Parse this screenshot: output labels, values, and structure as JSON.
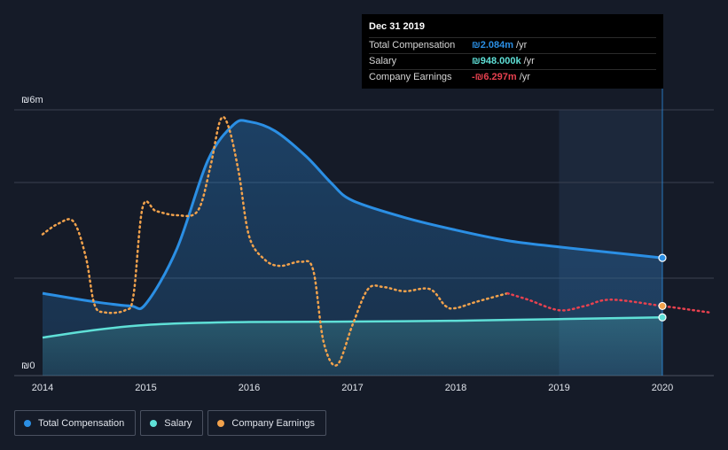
{
  "chart_data": {
    "type": "area",
    "currency_symbol": "₪",
    "x_ticks": [
      "2014",
      "2015",
      "2016",
      "2017",
      "2018",
      "2019",
      "2020"
    ],
    "y_tick_labels": [
      "₪6m",
      "₪0"
    ],
    "ylim": [
      -0.3,
      6
    ],
    "x_range": [
      2014,
      2020.5
    ],
    "forecast_start": 2019.0,
    "series": [
      {
        "name": "Total Compensation",
        "key": "total",
        "color": "#2b8fe4",
        "values": [
          [
            2014.0,
            1.65
          ],
          [
            2014.5,
            1.45
          ],
          [
            2014.85,
            1.35
          ],
          [
            2015.0,
            1.4
          ],
          [
            2015.3,
            2.7
          ],
          [
            2015.6,
            4.8
          ],
          [
            2015.85,
            5.65
          ],
          [
            2016.0,
            5.72
          ],
          [
            2016.25,
            5.5
          ],
          [
            2016.55,
            4.9
          ],
          [
            2016.8,
            4.25
          ],
          [
            2017.0,
            3.85
          ],
          [
            2017.5,
            3.45
          ],
          [
            2018.0,
            3.15
          ],
          [
            2018.5,
            2.9
          ],
          [
            2019.0,
            2.75
          ],
          [
            2019.5,
            2.62
          ],
          [
            2020.0,
            2.49
          ]
        ]
      },
      {
        "name": "Salary",
        "key": "salary",
        "color": "#5fe0d7",
        "values": [
          [
            2014.0,
            0.6
          ],
          [
            2014.5,
            0.78
          ],
          [
            2015.0,
            0.9
          ],
          [
            2015.5,
            0.95
          ],
          [
            2016.0,
            0.97
          ],
          [
            2017.0,
            0.98
          ],
          [
            2018.0,
            1.0
          ],
          [
            2019.0,
            1.04
          ],
          [
            2020.0,
            1.08
          ]
        ]
      },
      {
        "name": "Company Earnings",
        "key": "earnings",
        "color": "#f2a24c",
        "forecast_color": "#e8414f",
        "values": [
          [
            2014.0,
            3.05
          ],
          [
            2014.15,
            3.3
          ],
          [
            2014.3,
            3.35
          ],
          [
            2014.42,
            2.5
          ],
          [
            2014.5,
            1.4
          ],
          [
            2014.6,
            1.2
          ],
          [
            2014.8,
            1.25
          ],
          [
            2014.88,
            1.6
          ],
          [
            2014.97,
            3.7
          ],
          [
            2015.1,
            3.6
          ],
          [
            2015.3,
            3.5
          ],
          [
            2015.5,
            3.6
          ],
          [
            2015.62,
            4.6
          ],
          [
            2015.72,
            5.75
          ],
          [
            2015.8,
            5.6
          ],
          [
            2015.9,
            4.5
          ],
          [
            2016.0,
            3.0
          ],
          [
            2016.15,
            2.45
          ],
          [
            2016.3,
            2.3
          ],
          [
            2016.5,
            2.4
          ],
          [
            2016.62,
            2.2
          ],
          [
            2016.72,
            0.5
          ],
          [
            2016.85,
            -0.05
          ],
          [
            2017.0,
            0.9
          ],
          [
            2017.15,
            1.75
          ],
          [
            2017.3,
            1.8
          ],
          [
            2017.5,
            1.7
          ],
          [
            2017.75,
            1.75
          ],
          [
            2017.9,
            1.35
          ],
          [
            2018.0,
            1.3
          ],
          [
            2018.2,
            1.45
          ],
          [
            2018.5,
            1.65
          ],
          [
            2018.7,
            1.5
          ],
          [
            2019.0,
            1.25
          ],
          [
            2019.25,
            1.35
          ],
          [
            2019.5,
            1.5
          ],
          [
            2020.0,
            1.35
          ],
          [
            2020.45,
            1.2
          ]
        ]
      }
    ],
    "tooltip": {
      "date": "Dec 31 2019",
      "rows": [
        {
          "label": "Total Compensation",
          "value": "₪2.084m",
          "unit": "/yr",
          "color": "#2b8fe4"
        },
        {
          "label": "Salary",
          "value": "₪948.000k",
          "unit": "/yr",
          "color": "#5fe0d7"
        },
        {
          "label": "Company Earnings",
          "value": "-₪6.297m",
          "unit": "/yr",
          "color": "#e8414f"
        }
      ]
    },
    "legend": [
      {
        "label": "Total Compensation",
        "color": "#2b8fe4"
      },
      {
        "label": "Salary",
        "color": "#5fe0d7"
      },
      {
        "label": "Company Earnings",
        "color": "#f2a24c"
      }
    ]
  }
}
